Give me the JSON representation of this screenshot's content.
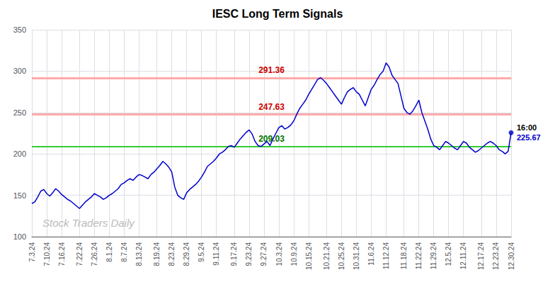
{
  "chart_data": {
    "type": "line",
    "title": "IESC Long Term Signals",
    "categories": [
      "7.3.24",
      null,
      null,
      null,
      null,
      "7.10.24",
      null,
      null,
      null,
      null,
      "7.16.24",
      null,
      null,
      null,
      null,
      null,
      "7.22.24",
      null,
      null,
      null,
      null,
      "7.26.24",
      null,
      null,
      null,
      null,
      "8.1.24",
      null,
      null,
      null,
      null,
      "8.7.24",
      null,
      null,
      null,
      null,
      "8.13.24",
      null,
      null,
      null,
      null,
      null,
      "8.19.24",
      null,
      null,
      null,
      null,
      "8.23.24",
      null,
      null,
      null,
      null,
      "8.29.24",
      null,
      null,
      null,
      null,
      "9.5.24",
      null,
      null,
      null,
      null,
      "9.11.24",
      null,
      null,
      null,
      null,
      null,
      "9.17.24",
      null,
      null,
      null,
      null,
      "9.23.24",
      null,
      null,
      null,
      null,
      "9.27.24",
      null,
      null,
      null,
      null,
      "10.3.24",
      null,
      null,
      null,
      null,
      "10.9.24",
      null,
      null,
      null,
      null,
      "10.15.24",
      null,
      null,
      null,
      null,
      null,
      "10.21.24",
      null,
      null,
      null,
      null,
      "10.25.24",
      null,
      null,
      null,
      null,
      "10.31.24",
      null,
      null,
      null,
      null,
      "11.6.24",
      null,
      null,
      null,
      null,
      "11.12.24",
      null,
      null,
      null,
      null,
      null,
      "11.18.24",
      null,
      null,
      null,
      null,
      "11.22.24",
      null,
      null,
      null,
      null,
      "11.29.24",
      null,
      null,
      null,
      null,
      "12.5.24",
      null,
      null,
      null,
      null,
      "12.11.24",
      null,
      null,
      null,
      null,
      null,
      "12.17.24",
      null,
      null,
      null,
      null,
      "12.23.24",
      null,
      null,
      null,
      null,
      "12.30.24"
    ],
    "values": [
      140,
      142,
      148,
      155,
      157,
      152,
      149,
      153,
      158,
      155,
      151,
      148,
      145,
      143,
      140,
      137,
      134,
      138,
      142,
      145,
      148,
      152,
      150,
      148,
      145,
      147,
      150,
      152,
      155,
      158,
      163,
      165,
      168,
      170,
      168,
      172,
      175,
      174,
      172,
      170,
      175,
      178,
      182,
      186,
      191,
      188,
      184,
      178,
      160,
      150,
      147,
      145,
      153,
      157,
      160,
      163,
      167,
      172,
      178,
      185,
      188,
      191,
      195,
      200,
      202,
      205,
      209,
      210,
      208,
      213,
      218,
      222,
      226,
      229,
      224,
      215,
      210,
      209,
      212,
      215,
      210,
      218,
      225,
      232,
      234,
      230,
      232,
      235,
      240,
      248,
      255,
      260,
      265,
      272,
      278,
      284,
      290,
      292,
      289,
      285,
      280,
      275,
      270,
      265,
      260,
      268,
      275,
      278,
      280,
      275,
      272,
      265,
      258,
      268,
      278,
      283,
      290,
      296,
      300,
      310,
      305,
      295,
      290,
      285,
      270,
      255,
      250,
      248,
      252,
      258,
      265,
      250,
      240,
      230,
      218,
      210,
      208,
      205,
      210,
      215,
      213,
      210,
      207,
      205,
      210,
      215,
      213,
      208,
      205,
      202,
      204,
      207,
      210,
      213,
      215,
      213,
      210,
      205,
      203,
      200,
      203,
      225.67
    ],
    "color": "#0000cc",
    "ylim": [
      100,
      350
    ],
    "yticks": [
      100,
      150,
      200,
      250,
      300,
      350
    ],
    "grid": true,
    "hlines": [
      {
        "value": 291.36,
        "label": "291.36",
        "color": "#ffaaaa",
        "label_color": "#cc0000"
      },
      {
        "value": 247.63,
        "label": "247.63",
        "color": "#ffaaaa",
        "label_color": "#cc0000"
      },
      {
        "value": 209.03,
        "label": "209.03",
        "color": "#33cc33",
        "label_color": "#007700"
      }
    ],
    "annotations": [
      {
        "text": "16:00",
        "color": "#000000"
      },
      {
        "text": "225.67",
        "color": "#0000cc"
      }
    ],
    "watermark": {
      "text": "Stock Traders Daily",
      "color": "#bbbbbb"
    }
  }
}
